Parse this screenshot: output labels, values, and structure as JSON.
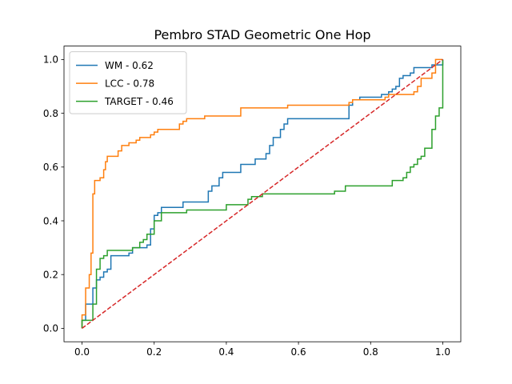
{
  "chart_data": {
    "type": "line",
    "title": "Pembro STAD Geometric One Hop",
    "xlabel": "",
    "ylabel": "",
    "xlim": [
      -0.05,
      1.05
    ],
    "ylim": [
      -0.05,
      1.05
    ],
    "xticks": [
      "0.0",
      "0.2",
      "0.4",
      "0.6",
      "0.8",
      "1.0"
    ],
    "yticks": [
      "0.0",
      "0.2",
      "0.4",
      "0.6",
      "0.8",
      "1.0"
    ],
    "grid": false,
    "legend_position": "upper-left",
    "series": [
      {
        "name": "WM - 0.62",
        "color": "#1f77b4",
        "drawstyle": "steps-post",
        "x": [
          0,
          0,
          0.01,
          0.01,
          0.03,
          0.03,
          0.04,
          0.05,
          0.06,
          0.07,
          0.08,
          0.13,
          0.14,
          0.18,
          0.19,
          0.2,
          0.21,
          0.22,
          0.28,
          0.35,
          0.36,
          0.38,
          0.39,
          0.41,
          0.44,
          0.48,
          0.51,
          0.52,
          0.53,
          0.55,
          0.56,
          0.57,
          0.74,
          0.75,
          0.77,
          0.83,
          0.85,
          0.86,
          0.87,
          0.88,
          0.89,
          0.91,
          0.92,
          0.97,
          1
        ],
        "y": [
          0,
          0.03,
          0.03,
          0.09,
          0.09,
          0.15,
          0.18,
          0.19,
          0.21,
          0.22,
          0.27,
          0.28,
          0.3,
          0.31,
          0.37,
          0.42,
          0.43,
          0.45,
          0.47,
          0.51,
          0.53,
          0.56,
          0.58,
          0.58,
          0.61,
          0.63,
          0.65,
          0.68,
          0.71,
          0.74,
          0.76,
          0.78,
          0.83,
          0.85,
          0.86,
          0.87,
          0.88,
          0.89,
          0.9,
          0.93,
          0.94,
          0.95,
          0.97,
          0.98,
          1.0
        ]
      },
      {
        "name": "LCC - 0.78",
        "color": "#ff7f0e",
        "drawstyle": "steps-post",
        "x": [
          0,
          0,
          0.01,
          0.02,
          0.025,
          0.03,
          0.035,
          0.05,
          0.06,
          0.065,
          0.07,
          0.08,
          0.1,
          0.11,
          0.13,
          0.15,
          0.16,
          0.19,
          0.2,
          0.21,
          0.22,
          0.27,
          0.28,
          0.29,
          0.34,
          0.44,
          0.45,
          0.57,
          0.58,
          0.74,
          0.75,
          0.76,
          0.84,
          0.85,
          0.92,
          0.93,
          0.94,
          0.97,
          0.98,
          1
        ],
        "y": [
          0,
          0.05,
          0.15,
          0.2,
          0.28,
          0.5,
          0.55,
          0.56,
          0.59,
          0.62,
          0.64,
          0.64,
          0.66,
          0.68,
          0.69,
          0.7,
          0.71,
          0.72,
          0.73,
          0.74,
          0.74,
          0.76,
          0.77,
          0.78,
          0.79,
          0.82,
          0.82,
          0.83,
          0.83,
          0.84,
          0.85,
          0.85,
          0.86,
          0.87,
          0.88,
          0.9,
          0.93,
          0.95,
          1.0,
          1.0
        ]
      },
      {
        "name": "TARGET - 0.46",
        "color": "#2ca02c",
        "drawstyle": "steps-post",
        "x": [
          0,
          0,
          0.02,
          0.03,
          0.04,
          0.05,
          0.06,
          0.07,
          0.12,
          0.14,
          0.16,
          0.17,
          0.18,
          0.2,
          0.22,
          0.27,
          0.29,
          0.4,
          0.46,
          0.47,
          0.5,
          0.51,
          0.56,
          0.7,
          0.73,
          0.84,
          0.86,
          0.89,
          0.9,
          0.91,
          0.92,
          0.93,
          0.94,
          0.95,
          0.96,
          0.97,
          0.98,
          0.99,
          1.0
        ],
        "y": [
          0,
          0.03,
          0.03,
          0.09,
          0.22,
          0.26,
          0.27,
          0.29,
          0.29,
          0.3,
          0.32,
          0.33,
          0.35,
          0.4,
          0.43,
          0.43,
          0.44,
          0.46,
          0.48,
          0.49,
          0.5,
          0.5,
          0.5,
          0.51,
          0.53,
          0.53,
          0.55,
          0.56,
          0.58,
          0.6,
          0.61,
          0.63,
          0.64,
          0.67,
          0.67,
          0.74,
          0.79,
          0.82,
          1.0
        ]
      },
      {
        "name": "",
        "color": "#d62728",
        "linestyle": "dashed",
        "x": [
          0,
          1
        ],
        "y": [
          0,
          1
        ]
      }
    ]
  }
}
